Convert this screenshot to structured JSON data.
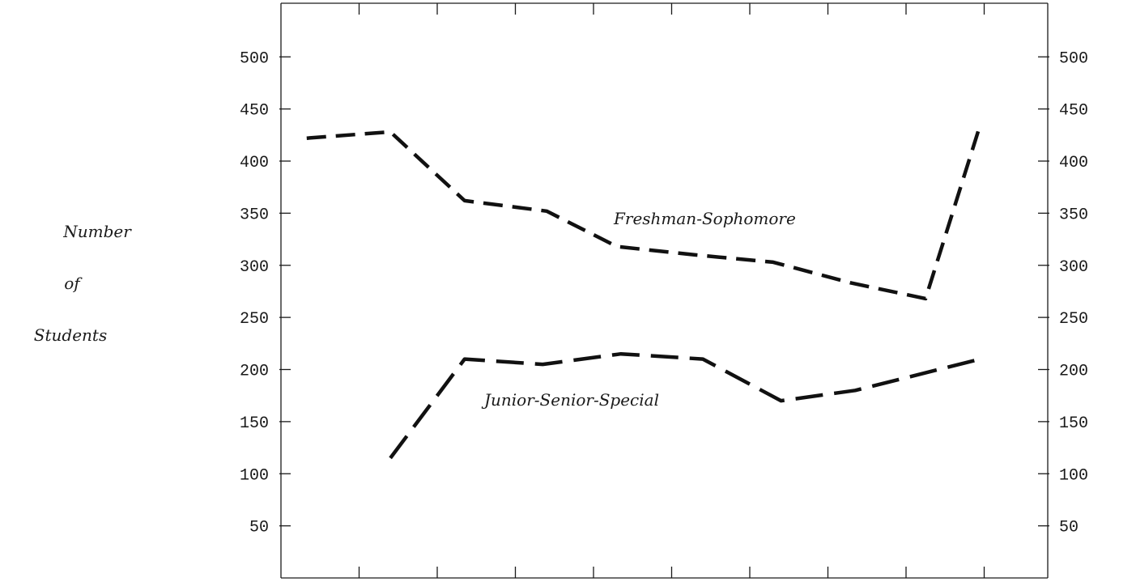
{
  "chart_data": {
    "type": "line",
    "ylabel": [
      "Number",
      "of",
      "Students"
    ],
    "xlabel": "",
    "ylim": [
      0,
      540
    ],
    "y_ticks": [
      50,
      100,
      150,
      200,
      250,
      300,
      350,
      400,
      450,
      500
    ],
    "y_tick_labels": [
      "50",
      "100",
      "150",
      "200",
      "250",
      "300",
      "350",
      "400",
      "450",
      "500"
    ],
    "x_tick_count": 10,
    "right_axis_labels": true,
    "grid": false,
    "series": [
      {
        "name": "Freshman-Sophomore",
        "line_style": "short-dash",
        "points": [
          {
            "x": 0.33,
            "y": 422
          },
          {
            "x": 1.4,
            "y": 428
          },
          {
            "x": 2.35,
            "y": 362
          },
          {
            "x": 3.4,
            "y": 352
          },
          {
            "x": 4.3,
            "y": 318
          },
          {
            "x": 5.3,
            "y": 310
          },
          {
            "x": 6.3,
            "y": 303
          },
          {
            "x": 7.3,
            "y": 283
          },
          {
            "x": 8.25,
            "y": 268
          },
          {
            "x": 8.95,
            "y": 435
          }
        ]
      },
      {
        "name": "Junior-Senior-Special",
        "line_style": "long-dash",
        "points": [
          {
            "x": 1.4,
            "y": 115
          },
          {
            "x": 2.35,
            "y": 210
          },
          {
            "x": 3.35,
            "y": 205
          },
          {
            "x": 4.35,
            "y": 215
          },
          {
            "x": 5.4,
            "y": 210
          },
          {
            "x": 6.4,
            "y": 170
          },
          {
            "x": 7.35,
            "y": 180
          },
          {
            "x": 8.95,
            "y": 210
          }
        ]
      }
    ]
  }
}
